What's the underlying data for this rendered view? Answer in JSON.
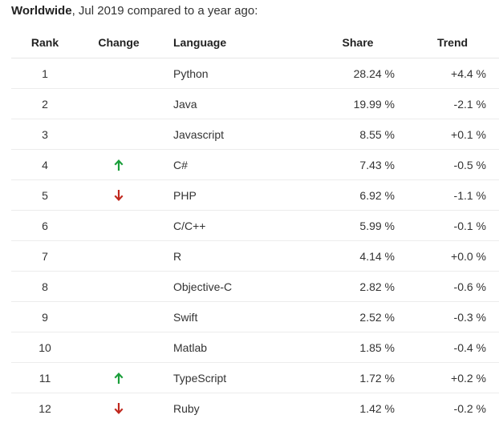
{
  "headline": {
    "bold": "Worldwide",
    "rest": ", Jul 2019 compared to a year ago:"
  },
  "columns": {
    "rank": "Rank",
    "change": "Change",
    "language": "Language",
    "share": "Share",
    "trend": "Trend"
  },
  "colors": {
    "up": "#1a9e3a",
    "down": "#c0281e"
  },
  "rows": [
    {
      "rank": "1",
      "change": "",
      "language": "Python",
      "share": "28.24 %",
      "trend": "+4.4 %"
    },
    {
      "rank": "2",
      "change": "",
      "language": "Java",
      "share": "19.99 %",
      "trend": "-2.1 %"
    },
    {
      "rank": "3",
      "change": "",
      "language": "Javascript",
      "share": "8.55 %",
      "trend": "+0.1 %"
    },
    {
      "rank": "4",
      "change": "up",
      "language": "C#",
      "share": "7.43 %",
      "trend": "-0.5 %"
    },
    {
      "rank": "5",
      "change": "down",
      "language": "PHP",
      "share": "6.92 %",
      "trend": "-1.1 %"
    },
    {
      "rank": "6",
      "change": "",
      "language": "C/C++",
      "share": "5.99 %",
      "trend": "-0.1 %"
    },
    {
      "rank": "7",
      "change": "",
      "language": "R",
      "share": "4.14 %",
      "trend": "+0.0 %"
    },
    {
      "rank": "8",
      "change": "",
      "language": "Objective-C",
      "share": "2.82 %",
      "trend": "-0.6 %"
    },
    {
      "rank": "9",
      "change": "",
      "language": "Swift",
      "share": "2.52 %",
      "trend": "-0.3 %"
    },
    {
      "rank": "10",
      "change": "",
      "language": "Matlab",
      "share": "1.85 %",
      "trend": "-0.4 %"
    },
    {
      "rank": "11",
      "change": "up",
      "language": "TypeScript",
      "share": "1.72 %",
      "trend": "+0.2 %"
    },
    {
      "rank": "12",
      "change": "down",
      "language": "Ruby",
      "share": "1.42 %",
      "trend": "-0.2 %"
    }
  ]
}
